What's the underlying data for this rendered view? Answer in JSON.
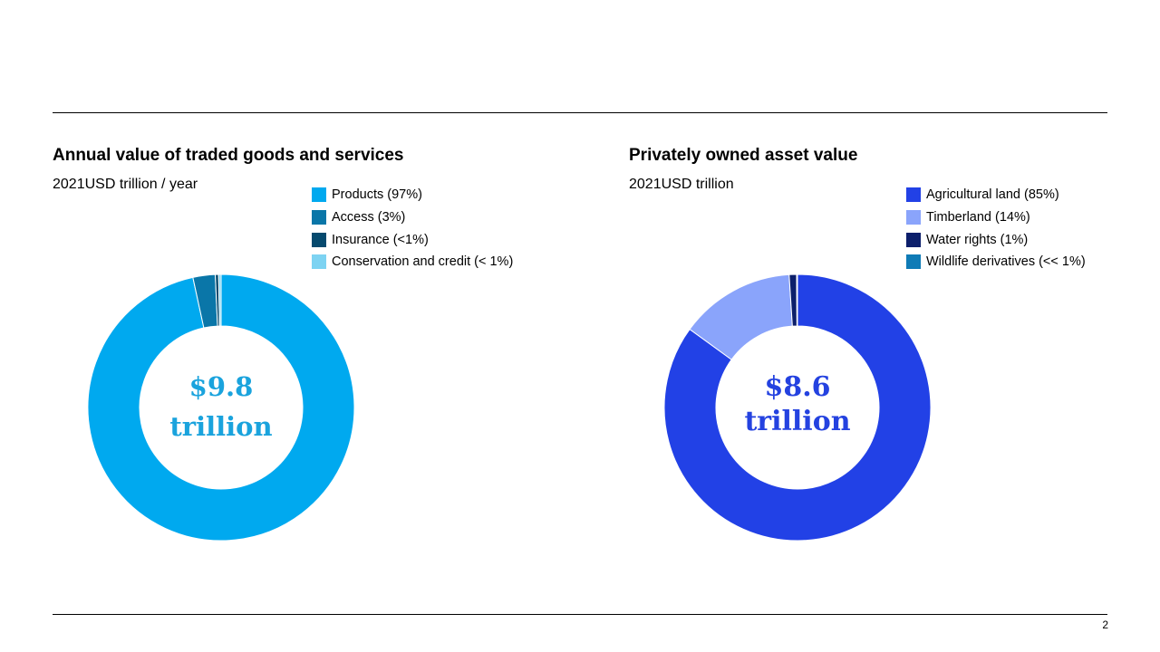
{
  "page_number": "2",
  "chart_data": [
    {
      "type": "pie",
      "donut": true,
      "title": "Annual value of traded goods and services",
      "subtitle": "2021USD trillion / year",
      "center_text": [
        "$9.8",
        "trillion"
      ],
      "center_color": "#1aa3dd",
      "legend_position": "top-right",
      "slices": [
        {
          "label": "Products (97%)",
          "value": 96.6,
          "color": "#00a9ef"
        },
        {
          "label": "Access (3%)",
          "value": 2.7,
          "color": "#0a76a8"
        },
        {
          "label": "Insurance  (<1%)",
          "value": 0.4,
          "color": "#064a6e"
        },
        {
          "label": "Conservation and credit (< 1%)",
          "value": 0.3,
          "color": "#7dd3f2"
        }
      ]
    },
    {
      "type": "pie",
      "donut": true,
      "title": "Privately owned asset value",
      "subtitle": "2021USD trillion",
      "center_text": [
        "$8.6",
        "trillion"
      ],
      "center_color": "#2442e0",
      "legend_position": "top-right",
      "slices": [
        {
          "label": "Agricultural land (85%)",
          "value": 85.0,
          "color": "#2241e6"
        },
        {
          "label": "Timberland (14%)",
          "value": 14.0,
          "color": "#8aa4fb"
        },
        {
          "label": "Water rights (1%)",
          "value": 0.9,
          "color": "#0c1f6b"
        },
        {
          "label": "Wildlife derivatives (<< 1%)",
          "value": 0.1,
          "color": "#0f7bb6"
        }
      ]
    }
  ]
}
